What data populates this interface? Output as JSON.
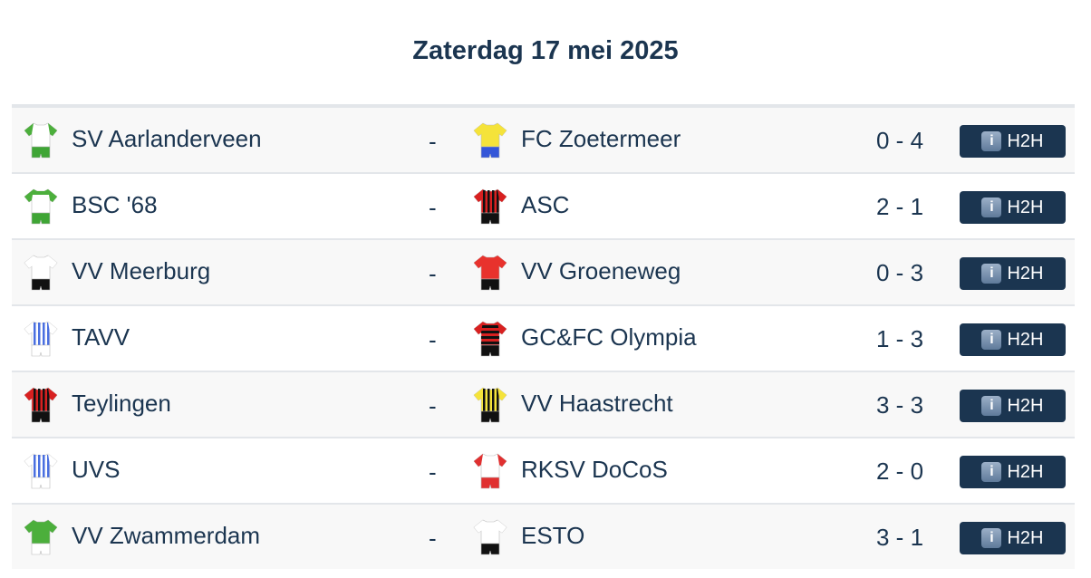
{
  "title": "Zaterdag 17 mei 2025",
  "separator": "-",
  "h2h_label": "H2H",
  "info_glyph": "i",
  "matches": [
    {
      "home": "SV Aarlanderveen",
      "away": "FC Zoetermeer",
      "score": "0 - 4",
      "home_kit": {
        "body": "#ffffff",
        "sleeve": "#4caf3c",
        "shorts": "#3fa535",
        "stripe": null,
        "hoops": null
      },
      "away_kit": {
        "body": "#f5e33a",
        "sleeve": "#f5e33a",
        "shorts": "#3456d8",
        "stripe": null,
        "hoops": null
      }
    },
    {
      "home": "BSC '68",
      "away": "ASC",
      "score": "2 - 1",
      "home_kit": {
        "body": "#ffffff",
        "sleeve": "#4caf3c",
        "shorts": "#3fa535",
        "stripe": null,
        "hoops": null,
        "top": "#4caf3c"
      },
      "away_kit": {
        "body": "#d82020",
        "sleeve": "#d82020",
        "shorts": "#111111",
        "stripe": "#111111",
        "hoops": null
      }
    },
    {
      "home": "VV Meerburg",
      "away": "VV Groeneweg",
      "score": "0 - 3",
      "home_kit": {
        "body": "#ffffff",
        "sleeve": "#ffffff",
        "shorts": "#111111",
        "stripe": null,
        "hoops": null
      },
      "away_kit": {
        "body": "#e8322d",
        "sleeve": "#e8322d",
        "shorts": "#111111",
        "stripe": null,
        "hoops": null
      }
    },
    {
      "home": "TAVV",
      "away": "GC&FC Olympia",
      "score": "1 - 3",
      "home_kit": {
        "body": "#ffffff",
        "sleeve": "#ffffff",
        "shorts": "#ffffff",
        "stripe": "#4a6fe0",
        "hoops": null
      },
      "away_kit": {
        "body": "#d82020",
        "sleeve": "#d82020",
        "shorts": "#111111",
        "stripe": null,
        "hoops": "#111111"
      }
    },
    {
      "home": "Teylingen",
      "away": "VV Haastrecht",
      "score": "3 - 3",
      "home_kit": {
        "body": "#d82020",
        "sleeve": "#d82020",
        "shorts": "#111111",
        "stripe": "#111111",
        "hoops": null
      },
      "away_kit": {
        "body": "#f5e33a",
        "sleeve": "#f5e33a",
        "shorts": "#111111",
        "stripe": "#111111",
        "hoops": null
      }
    },
    {
      "home": "UVS",
      "away": "RKSV DoCoS",
      "score": "2 - 0",
      "home_kit": {
        "body": "#ffffff",
        "sleeve": "#ffffff",
        "shorts": "#ffffff",
        "stripe": "#4a6fe0",
        "hoops": null
      },
      "away_kit": {
        "body": "#ffffff",
        "sleeve": "#e03030",
        "shorts": "#e03030",
        "stripe": null,
        "hoops": null
      }
    },
    {
      "home": "VV Zwammerdam",
      "away": "ESTO",
      "score": "3 - 1",
      "home_kit": {
        "body": "#4caf3c",
        "sleeve": "#4caf3c",
        "shorts": "#ffffff",
        "stripe": null,
        "hoops": null
      },
      "away_kit": {
        "body": "#ffffff",
        "sleeve": "#ffffff",
        "shorts": "#111111",
        "stripe": null,
        "hoops": null
      }
    }
  ]
}
